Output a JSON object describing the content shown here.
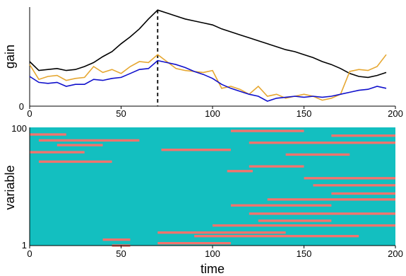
{
  "chart_data": [
    {
      "type": "line",
      "ylabel": "gain",
      "xlim": [
        0,
        200
      ],
      "x_ticks": [
        "0",
        "50",
        "100",
        "150",
        "200"
      ],
      "y_ticks": [
        "0"
      ],
      "marker_line": {
        "x": 70,
        "style": "dashed"
      },
      "series_colors": [
        "#000000",
        "#E6A731",
        "#1010CC"
      ],
      "x": [
        0,
        5,
        10,
        15,
        20,
        25,
        30,
        35,
        40,
        45,
        50,
        55,
        60,
        65,
        70,
        75,
        80,
        85,
        90,
        95,
        100,
        105,
        110,
        115,
        120,
        125,
        130,
        135,
        140,
        145,
        150,
        155,
        160,
        165,
        170,
        175,
        180,
        185,
        190,
        195
      ],
      "series": [
        {
          "values": [
            0.45,
            0.36,
            0.37,
            0.38,
            0.36,
            0.37,
            0.4,
            0.44,
            0.5,
            0.55,
            0.63,
            0.7,
            0.78,
            0.88,
            0.97,
            0.94,
            0.91,
            0.88,
            0.86,
            0.84,
            0.82,
            0.78,
            0.75,
            0.72,
            0.69,
            0.66,
            0.63,
            0.6,
            0.57,
            0.55,
            0.52,
            0.49,
            0.45,
            0.42,
            0.38,
            0.33,
            0.3,
            0.29,
            0.31,
            0.34
          ]
        },
        {
          "values": [
            0.42,
            0.27,
            0.3,
            0.31,
            0.26,
            0.28,
            0.29,
            0.4,
            0.34,
            0.37,
            0.33,
            0.4,
            0.45,
            0.44,
            0.52,
            0.45,
            0.38,
            0.36,
            0.35,
            0.34,
            0.36,
            0.18,
            0.2,
            0.17,
            0.12,
            0.2,
            0.1,
            0.12,
            0.08,
            0.1,
            0.12,
            0.1,
            0.06,
            0.08,
            0.12,
            0.35,
            0.37,
            0.36,
            0.4,
            0.52
          ]
        },
        {
          "values": [
            0.3,
            0.24,
            0.23,
            0.24,
            0.2,
            0.22,
            0.22,
            0.27,
            0.26,
            0.28,
            0.29,
            0.33,
            0.37,
            0.38,
            0.46,
            0.44,
            0.42,
            0.39,
            0.35,
            0.32,
            0.28,
            0.22,
            0.18,
            0.15,
            0.12,
            0.1,
            0.05,
            0.08,
            0.09,
            0.1,
            0.09,
            0.1,
            0.09,
            0.1,
            0.12,
            0.14,
            0.16,
            0.17,
            0.2,
            0.18
          ]
        }
      ]
    },
    {
      "type": "heatmap",
      "xlabel": "time",
      "ylabel": "variable",
      "xlim": [
        0,
        200
      ],
      "ylim": [
        1,
        100
      ],
      "x_ticks": [
        "0",
        "50",
        "100",
        "150",
        "200"
      ],
      "y_ticks": [
        "1",
        "100"
      ],
      "colors": {
        "background": "#13BFC0",
        "active": "#F4736D"
      },
      "active_segments": [
        {
          "variable": 72,
          "from": 5,
          "to": 45
        },
        {
          "variable": 80,
          "from": 0,
          "to": 30
        },
        {
          "variable": 86,
          "from": 15,
          "to": 40
        },
        {
          "variable": 90,
          "from": 5,
          "to": 60
        },
        {
          "variable": 95,
          "from": 0,
          "to": 20
        },
        {
          "variable": 98,
          "from": 110,
          "to": 150
        },
        {
          "variable": 94,
          "from": 165,
          "to": 200
        },
        {
          "variable": 88,
          "from": 120,
          "to": 200
        },
        {
          "variable": 82,
          "from": 72,
          "to": 110
        },
        {
          "variable": 78,
          "from": 140,
          "to": 175
        },
        {
          "variable": 68,
          "from": 120,
          "to": 150
        },
        {
          "variable": 64,
          "from": 108,
          "to": 122
        },
        {
          "variable": 58,
          "from": 150,
          "to": 200
        },
        {
          "variable": 52,
          "from": 155,
          "to": 200
        },
        {
          "variable": 45,
          "from": 165,
          "to": 200
        },
        {
          "variable": 40,
          "from": 130,
          "to": 200
        },
        {
          "variable": 35,
          "from": 110,
          "to": 165
        },
        {
          "variable": 28,
          "from": 120,
          "to": 200
        },
        {
          "variable": 22,
          "from": 125,
          "to": 165
        },
        {
          "variable": 18,
          "from": 100,
          "to": 200
        },
        {
          "variable": 12,
          "from": 70,
          "to": 140
        },
        {
          "variable": 9,
          "from": 90,
          "to": 180
        },
        {
          "variable": 6,
          "from": 40,
          "to": 55
        },
        {
          "variable": 3,
          "from": 70,
          "to": 110
        },
        {
          "variable": 1,
          "from": 45,
          "to": 55
        }
      ]
    }
  ]
}
